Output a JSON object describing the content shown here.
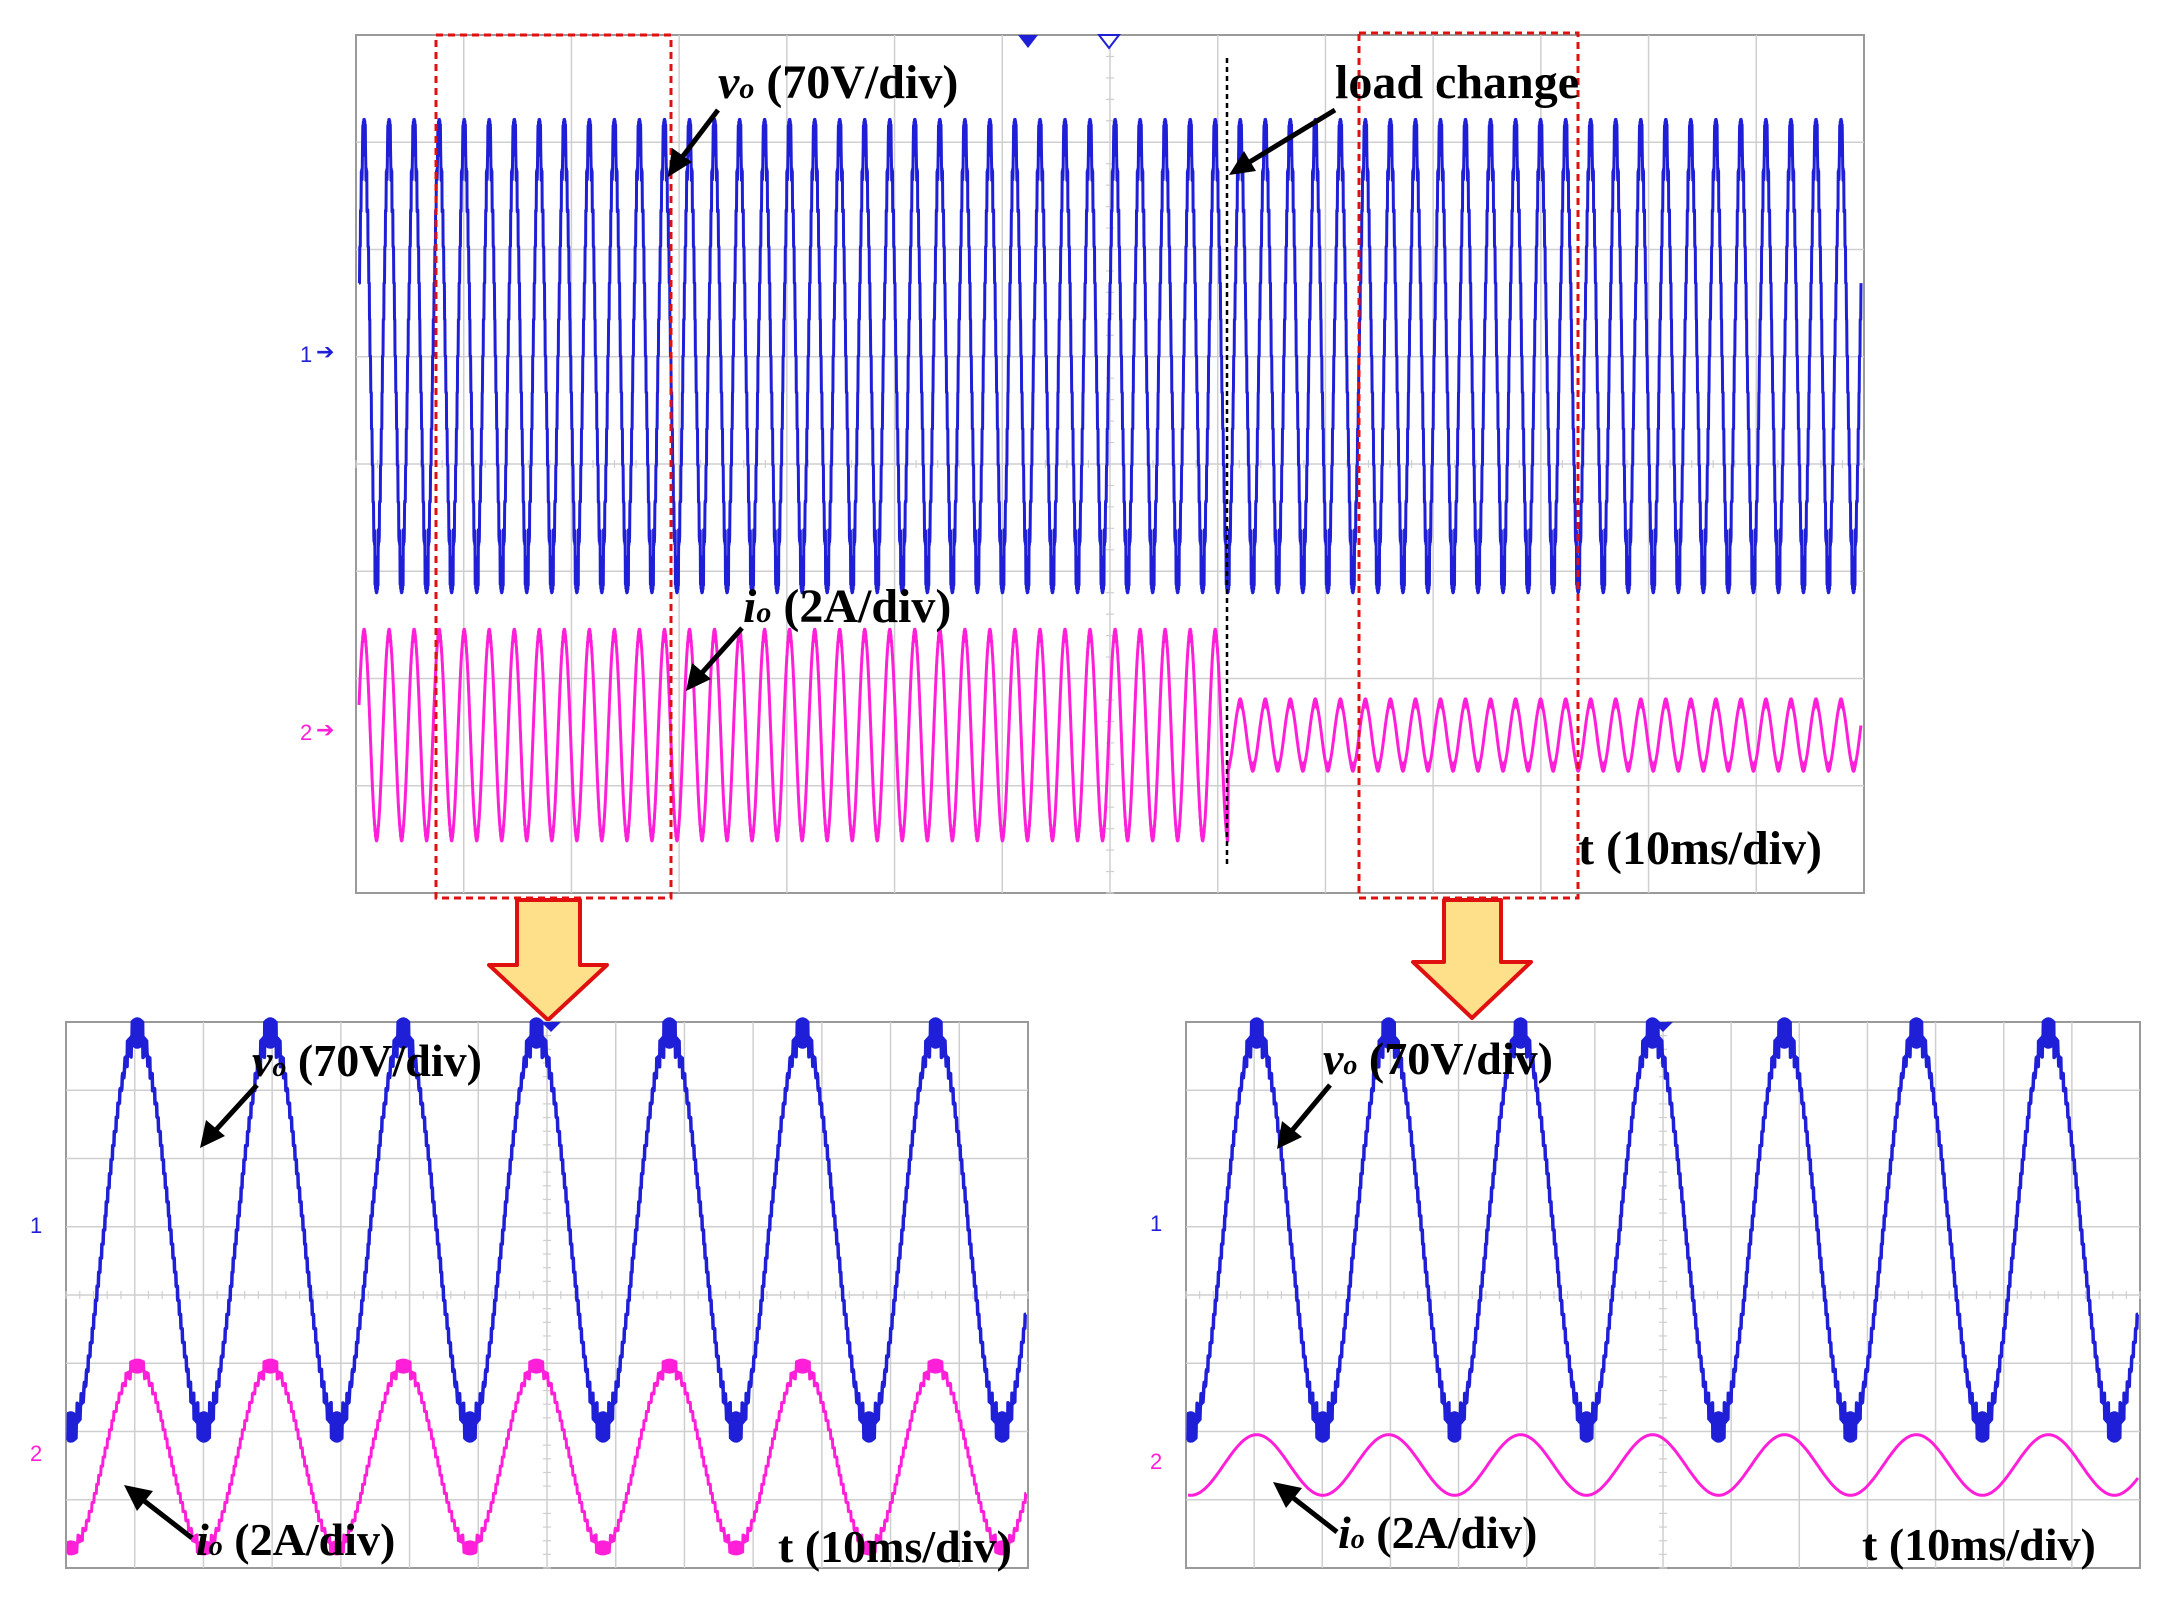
{
  "colors": {
    "vo_trace": "#1f1fd8",
    "io_trace": "#ff1fd8",
    "grid": "#cfcfcf",
    "zoom_box": "#e01010",
    "arrow_fill": "#ffe08a",
    "arrow_stroke": "#e01010",
    "vo_marker": "#1f1fd8",
    "io_marker": "#ff1fd8"
  },
  "top": {
    "vo_label": {
      "sym": "v",
      "sub": "o",
      "rest": " (70V/div)"
    },
    "io_label": {
      "sym": "i",
      "sub": "o",
      "rest": " (2A/div)"
    },
    "load_change": "load change",
    "time_label": "t (10ms/div)",
    "ch1_marker": "1",
    "ch2_marker": "2"
  },
  "zoom_left": {
    "vo_label": {
      "sym": "v",
      "sub": "o",
      "rest": " (70V/div)"
    },
    "io_label": {
      "sym": "i",
      "sub": "o",
      "rest": " (2A/div)"
    },
    "time_label": "t (10ms/div)",
    "ch1_marker": "1",
    "ch2_marker": "2"
  },
  "zoom_right": {
    "vo_label": {
      "sym": "v",
      "sub": "o",
      "rest": " (70V/div)"
    },
    "io_label": {
      "sym": "i",
      "sub": "o",
      "rest": " (2A/div)"
    },
    "time_label": "t (10ms/div)",
    "ch1_marker": "1",
    "ch2_marker": "2"
  },
  "chart_data": [
    {
      "type": "line",
      "time_per_div_ms": 10,
      "x_divisions": 14,
      "y_divisions": 8,
      "load_change_at_div": 8.1,
      "series": [
        {
          "name": "vo",
          "scale": "70V/div",
          "cycles_in_view": 60,
          "amplitude_div_before": 2.0,
          "amplitude_div_after": 2.0
        },
        {
          "name": "io",
          "scale": "2A/div",
          "cycles_in_view": 60,
          "amplitude_div_before": 0.95,
          "amplitude_div_after": 0.3
        }
      ]
    },
    {
      "type": "line",
      "time_per_div_ms": 10,
      "x_divisions": 14,
      "y_divisions": 8,
      "series": [
        {
          "name": "vo",
          "scale": "70V/div",
          "cycles_in_view": 7.2,
          "amplitude_div": 1.95
        },
        {
          "name": "io",
          "scale": "2A/div",
          "cycles_in_view": 7.2,
          "amplitude_div": 0.9
        }
      ]
    },
    {
      "type": "line",
      "time_per_div_ms": 10,
      "x_divisions": 14,
      "y_divisions": 8,
      "series": [
        {
          "name": "vo",
          "scale": "70V/div",
          "cycles_in_view": 7.2,
          "amplitude_div": 1.95
        },
        {
          "name": "io",
          "scale": "2A/div",
          "cycles_in_view": 7.2,
          "amplitude_div": 0.3
        }
      ]
    }
  ]
}
